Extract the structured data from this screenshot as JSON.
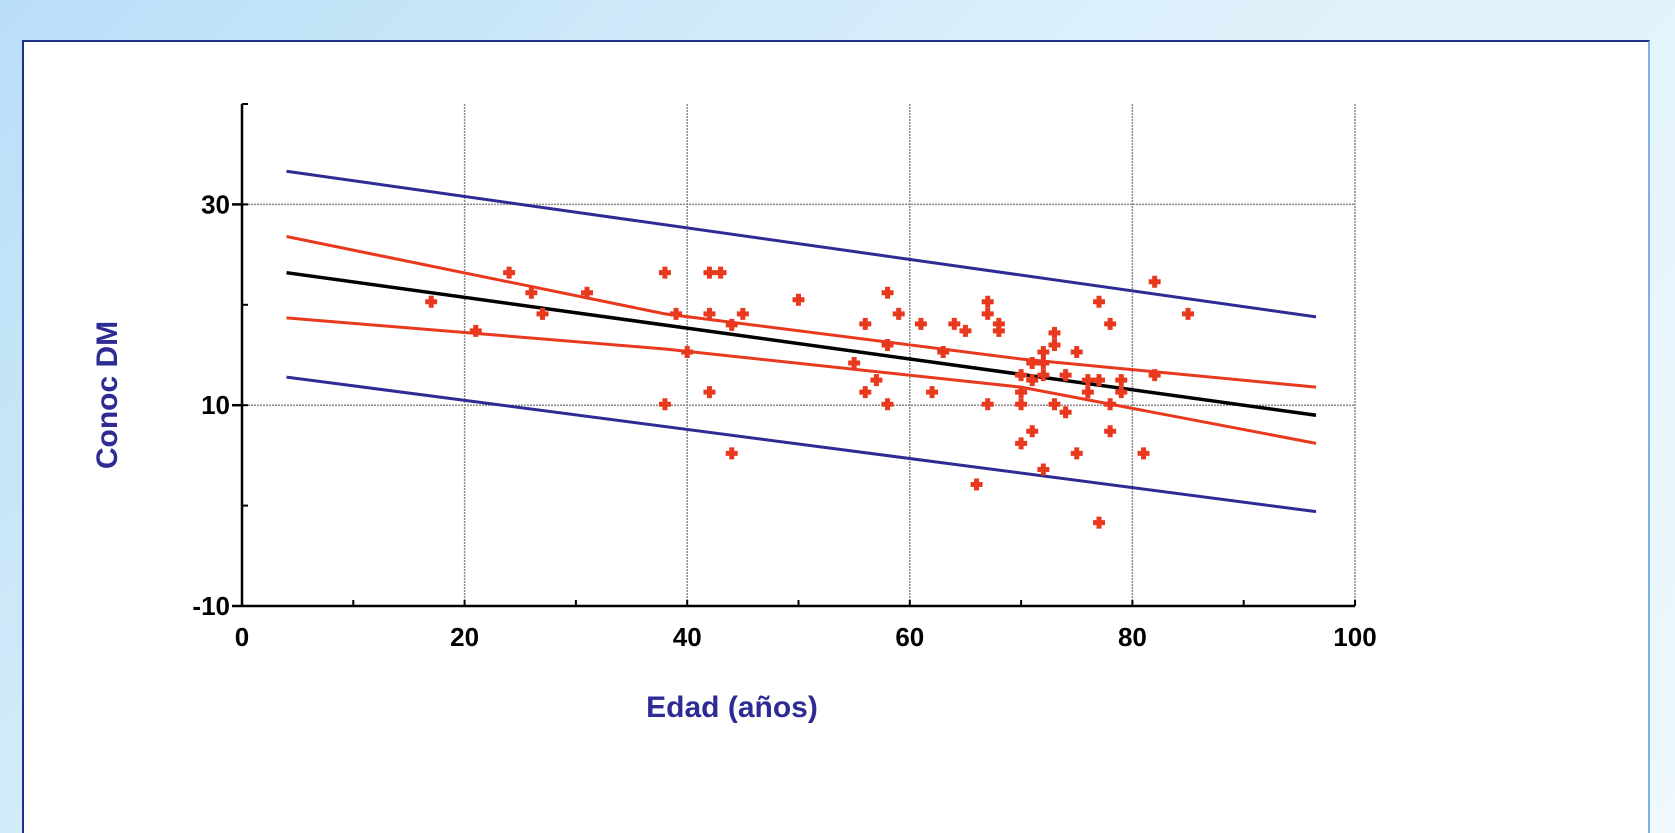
{
  "chart_data": {
    "type": "scatter",
    "xlabel": "Edad (años)",
    "ylabel": "Conoc DM",
    "xlim": [
      0,
      100
    ],
    "ylim": [
      -10,
      40
    ],
    "x_ticks": [
      0,
      20,
      40,
      60,
      80,
      100
    ],
    "y_ticks": [
      -10,
      10,
      30
    ],
    "y_tick_labels": [
      "-10",
      "10",
      "30"
    ],
    "x_tick_labels": [
      "0",
      "20",
      "40",
      "60",
      "80",
      "100"
    ],
    "grid": true,
    "colors": {
      "points": "#e8391f",
      "ci": "#e8391f",
      "fit": "#000000",
      "pi": "#2e2b94",
      "axis_title": "#2e2b94"
    },
    "lines": [
      {
        "role": "prediction-upper",
        "color": "#2e2b94",
        "x": [
          4,
          96.5
        ],
        "y": [
          33.3,
          18.8
        ]
      },
      {
        "role": "confidence-upper",
        "color": "#e8391f",
        "x": [
          4,
          38,
          70,
          96.5
        ],
        "y": [
          26.8,
          19.1,
          14.6,
          11.8
        ]
      },
      {
        "role": "fit",
        "color": "#000000",
        "x": [
          4,
          96.5
        ],
        "y": [
          23.2,
          9.0
        ]
      },
      {
        "role": "confidence-lower",
        "color": "#e8391f",
        "x": [
          4,
          38,
          70,
          96.5
        ],
        "y": [
          18.7,
          15.6,
          11.8,
          6.2
        ]
      },
      {
        "role": "prediction-lower",
        "color": "#2e2b94",
        "x": [
          4,
          96.5
        ],
        "y": [
          12.8,
          -0.6
        ]
      }
    ],
    "points": [
      [
        17,
        20.3
      ],
      [
        21,
        17.4
      ],
      [
        24,
        23.2
      ],
      [
        26,
        21.2
      ],
      [
        27,
        19.1
      ],
      [
        31,
        21.2
      ],
      [
        38,
        23.2
      ],
      [
        38,
        10.1
      ],
      [
        39,
        19.1
      ],
      [
        40,
        15.3
      ],
      [
        42,
        23.2
      ],
      [
        42,
        19.1
      ],
      [
        42,
        11.3
      ],
      [
        43,
        23.2
      ],
      [
        44,
        18.0
      ],
      [
        44,
        5.2
      ],
      [
        45,
        19.1
      ],
      [
        50,
        20.5
      ],
      [
        55,
        14.2
      ],
      [
        56,
        18.1
      ],
      [
        56,
        11.3
      ],
      [
        57,
        12.5
      ],
      [
        58,
        21.2
      ],
      [
        58,
        16.0
      ],
      [
        58,
        10.1
      ],
      [
        59,
        19.1
      ],
      [
        61,
        18.1
      ],
      [
        62,
        11.3
      ],
      [
        63,
        15.3
      ],
      [
        64,
        18.1
      ],
      [
        65,
        17.4
      ],
      [
        66,
        2.1
      ],
      [
        67,
        20.3
      ],
      [
        67,
        19.1
      ],
      [
        67,
        10.1
      ],
      [
        68,
        18.1
      ],
      [
        68,
        17.4
      ],
      [
        70,
        13.0
      ],
      [
        70,
        11.3
      ],
      [
        70,
        10.1
      ],
      [
        70,
        6.2
      ],
      [
        71,
        14.2
      ],
      [
        71,
        12.5
      ],
      [
        71,
        7.4
      ],
      [
        72,
        15.3
      ],
      [
        72,
        14.2
      ],
      [
        72,
        13.0
      ],
      [
        72,
        3.6
      ],
      [
        73,
        17.2
      ],
      [
        73,
        16.0
      ],
      [
        73,
        10.1
      ],
      [
        74,
        13.0
      ],
      [
        74,
        9.3
      ],
      [
        75,
        15.3
      ],
      [
        75,
        5.2
      ],
      [
        76,
        11.3
      ],
      [
        76,
        12.5
      ],
      [
        77,
        20.3
      ],
      [
        77,
        12.5
      ],
      [
        77,
        -1.7
      ],
      [
        78,
        18.1
      ],
      [
        78,
        10.1
      ],
      [
        78,
        7.4
      ],
      [
        79,
        11.3
      ],
      [
        79,
        12.5
      ],
      [
        81,
        5.2
      ],
      [
        82,
        22.3
      ],
      [
        82,
        13.0
      ],
      [
        85,
        19.1
      ]
    ]
  }
}
